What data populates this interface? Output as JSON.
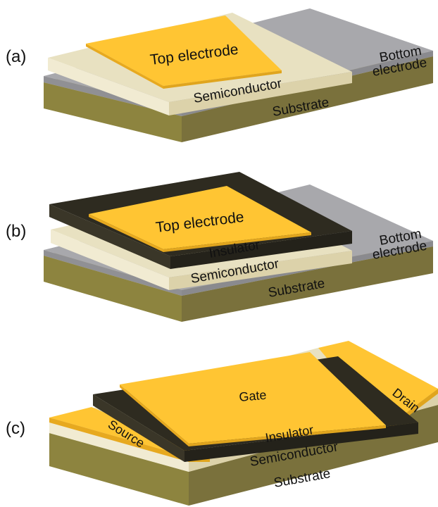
{
  "panels": {
    "a": {
      "label": "(a)",
      "top_electrode": "Top electrode",
      "bottom_electrode_line1": "Bottom",
      "bottom_electrode_line2": "electrode",
      "semiconductor": "Semiconductor",
      "substrate": "Substrate"
    },
    "b": {
      "label": "(b)",
      "top_electrode": "Top electrode",
      "insulator": "Insulator",
      "bottom_electrode_line1": "Bottom",
      "bottom_electrode_line2": "electrode",
      "semiconductor": "Semiconductor",
      "substrate": "Substrate"
    },
    "c": {
      "label": "(c)",
      "gate": "Gate",
      "drain": "Drain",
      "source": "Source",
      "insulator": "Insulator",
      "semiconductor": "Semiconductor",
      "substrate": "Substrate"
    }
  },
  "colors": {
    "electrode_gold": "#FFC533",
    "electrode_gold_side": "#E0A51E",
    "semiconductor": "#E8E1C1",
    "semiconductor_side": "#DCD2AA",
    "bottom_electrode": "#A8A8AC",
    "insulator": "#2E2B20",
    "substrate_top": "#B9AE6E",
    "substrate_side": "#7A713C"
  }
}
